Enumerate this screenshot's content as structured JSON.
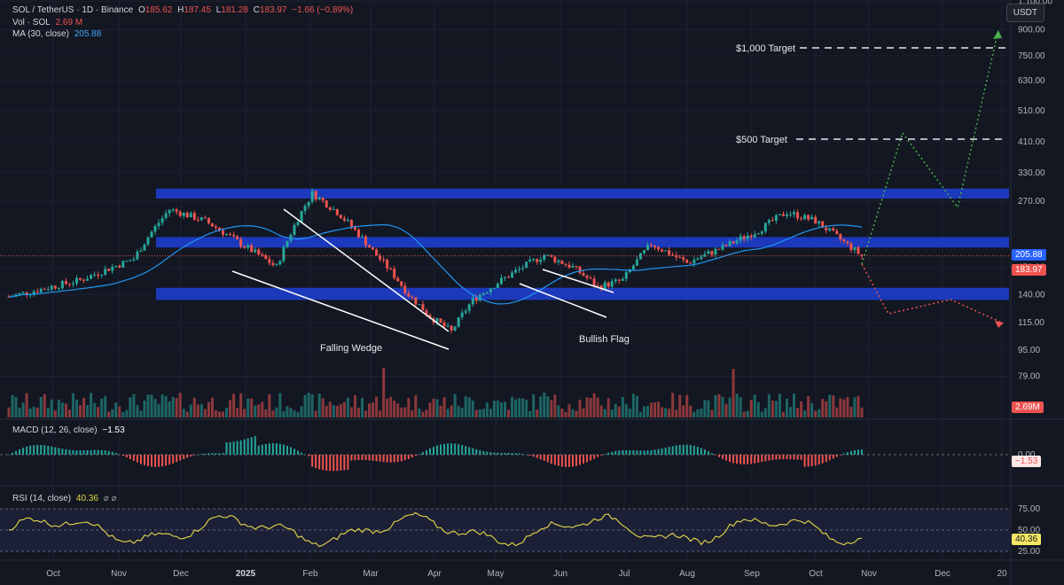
{
  "header": {
    "symbol": "SOL / TetherUS · 1D · Binance",
    "o_label": "O",
    "o": "185.62",
    "h_label": "H",
    "h": "187.45",
    "l_label": "L",
    "l": "181.28",
    "c_label": "C",
    "c": "183.97",
    "change": "−1.66 (−0.89%)",
    "vol_label": "Vol · SOL",
    "vol": "2.69 M",
    "ma_label": "MA (30, close)",
    "ma": "205.88",
    "currency": "USDT"
  },
  "price_axis": [
    "1,100.00",
    "900.00",
    "750.00",
    "630.00",
    "510.00",
    "410.00",
    "330.00",
    "270.00",
    "170.00",
    "140.00",
    "115.00",
    "95.00",
    "79.00"
  ],
  "badges": {
    "ma": "205.88",
    "close": "183.97",
    "vol": "2.69M",
    "macd": "−1.53",
    "rsi": "40.36"
  },
  "macd": {
    "label": "MACD (12, 26, close)",
    "value": "−1.53",
    "zero": "0.00"
  },
  "rsi": {
    "label": "RSI (14, close)",
    "value": "40.36",
    "icons": "⌀ ⌀",
    "levels": [
      "75.00",
      "50.00",
      "25.00"
    ]
  },
  "time_axis": [
    "Oct",
    "Nov",
    "Dec",
    "2025",
    "Feb",
    "Mar",
    "Apr",
    "May",
    "Jun",
    "Jul",
    "Aug",
    "Sep",
    "Oct",
    "Nov",
    "Dec",
    "20"
  ],
  "annotations": {
    "falling_wedge": "Falling Wedge",
    "bullish_flag": "Bullish Flag",
    "target_1000": "$1,000 Target",
    "target_500": "$500 Target"
  },
  "colors": {
    "up": "#26a69a",
    "down": "#ef5350",
    "ma": "#2962ff",
    "zone": "#1e3fd6",
    "rsi": "#e6d84a",
    "bull_path": "#4caf50",
    "bear_path": "#ef5350"
  },
  "chart_data": {
    "type": "candlestick",
    "symbol": "SOL / TetherUS",
    "interval": "1D",
    "scale": "log",
    "ohlc_last": {
      "open": 185.62,
      "high": 187.45,
      "low": 181.28,
      "close": 183.97,
      "change": -1.66,
      "change_pct": -0.89
    },
    "monthly_close_approx": [
      {
        "month": "Oct",
        "close": 150
      },
      {
        "month": "Nov",
        "close": 235
      },
      {
        "month": "Dec",
        "close": 190
      },
      {
        "month": "2025",
        "close": 230
      },
      {
        "month": "Feb",
        "close": 170
      },
      {
        "month": "Mar",
        "close": 125
      },
      {
        "month": "Apr",
        "close": 145
      },
      {
        "month": "May",
        "close": 170
      },
      {
        "month": "Jun",
        "close": 150
      },
      {
        "month": "Jul",
        "close": 175
      },
      {
        "month": "Aug",
        "close": 200
      },
      {
        "month": "Sep",
        "close": 230
      },
      {
        "month": "Oct",
        "close": 184
      }
    ],
    "ma30_last": 205.88,
    "volume_last": "2.69 M",
    "zones": [
      {
        "from": 275,
        "to": 295
      },
      {
        "from": 195,
        "to": 210
      },
      {
        "from": 135,
        "to": 147
      }
    ],
    "targets": [
      500,
      1000
    ],
    "projections": {
      "bullish": [
        [
          184,
          "Oct"
        ],
        [
          510,
          "Nov"
        ],
        [
          290,
          "Dec"
        ],
        [
          1100,
          "2026"
        ]
      ],
      "bearish": [
        [
          184,
          "Oct"
        ],
        [
          140,
          "Nov"
        ],
        [
          148,
          "Dec"
        ],
        [
          125,
          "2026"
        ]
      ]
    },
    "macd_last": -1.53,
    "rsi_last": 40.36,
    "rsi_levels": [
      25,
      50,
      75
    ]
  }
}
